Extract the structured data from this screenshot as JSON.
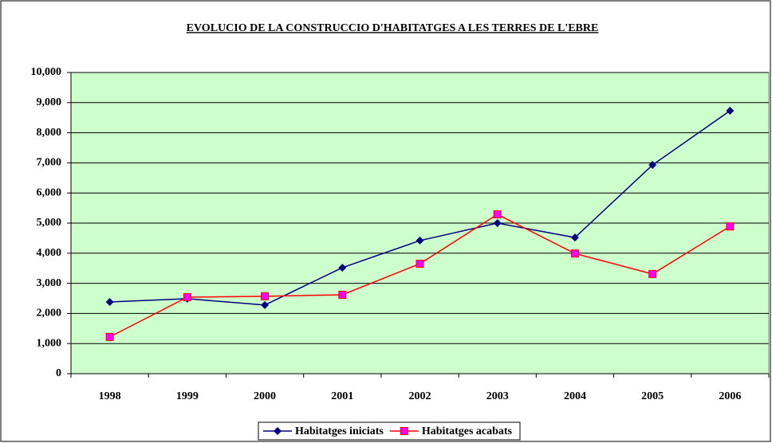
{
  "chart_data": {
    "type": "line",
    "title": "EVOLUCIO DE LA CONSTRUCCIO D'HABITATGES A LES TERRES DE L'EBRE",
    "categories": [
      "1998",
      "1999",
      "2000",
      "2001",
      "2002",
      "2003",
      "2004",
      "2005",
      "2006"
    ],
    "series": [
      {
        "name": "Habitatges iniciats",
        "color": "#000080",
        "marker": "diamond",
        "values": [
          2380,
          2490,
          2280,
          3520,
          4420,
          5000,
          4520,
          6930,
          8730
        ]
      },
      {
        "name": "Habitatges acabats",
        "color": "#ff0000",
        "marker_fill": "#ff00ff",
        "marker": "square",
        "values": [
          1220,
          2540,
          2570,
          2620,
          3650,
          5290,
          3990,
          3310,
          4890
        ]
      }
    ],
    "ylim": [
      0,
      10000
    ],
    "yticks": [
      0,
      {
        "value": 1000,
        "label": "1,000"
      },
      {
        "value": 2000,
        "label": "2,000"
      },
      {
        "value": 3000,
        "label": "3,000"
      },
      {
        "value": 4000,
        "label": "4,000"
      },
      {
        "value": 5000,
        "label": "5,000"
      },
      {
        "value": 6000,
        "label": "6,000"
      },
      {
        "value": 7000,
        "label": "7,000"
      },
      {
        "value": 8000,
        "label": "8,000"
      },
      {
        "value": 9000,
        "label": "9,000"
      },
      {
        "value": 10000,
        "label": "10,000"
      }
    ],
    "grid": true,
    "plot_background": "#ccffcc",
    "legend": "bottom"
  }
}
